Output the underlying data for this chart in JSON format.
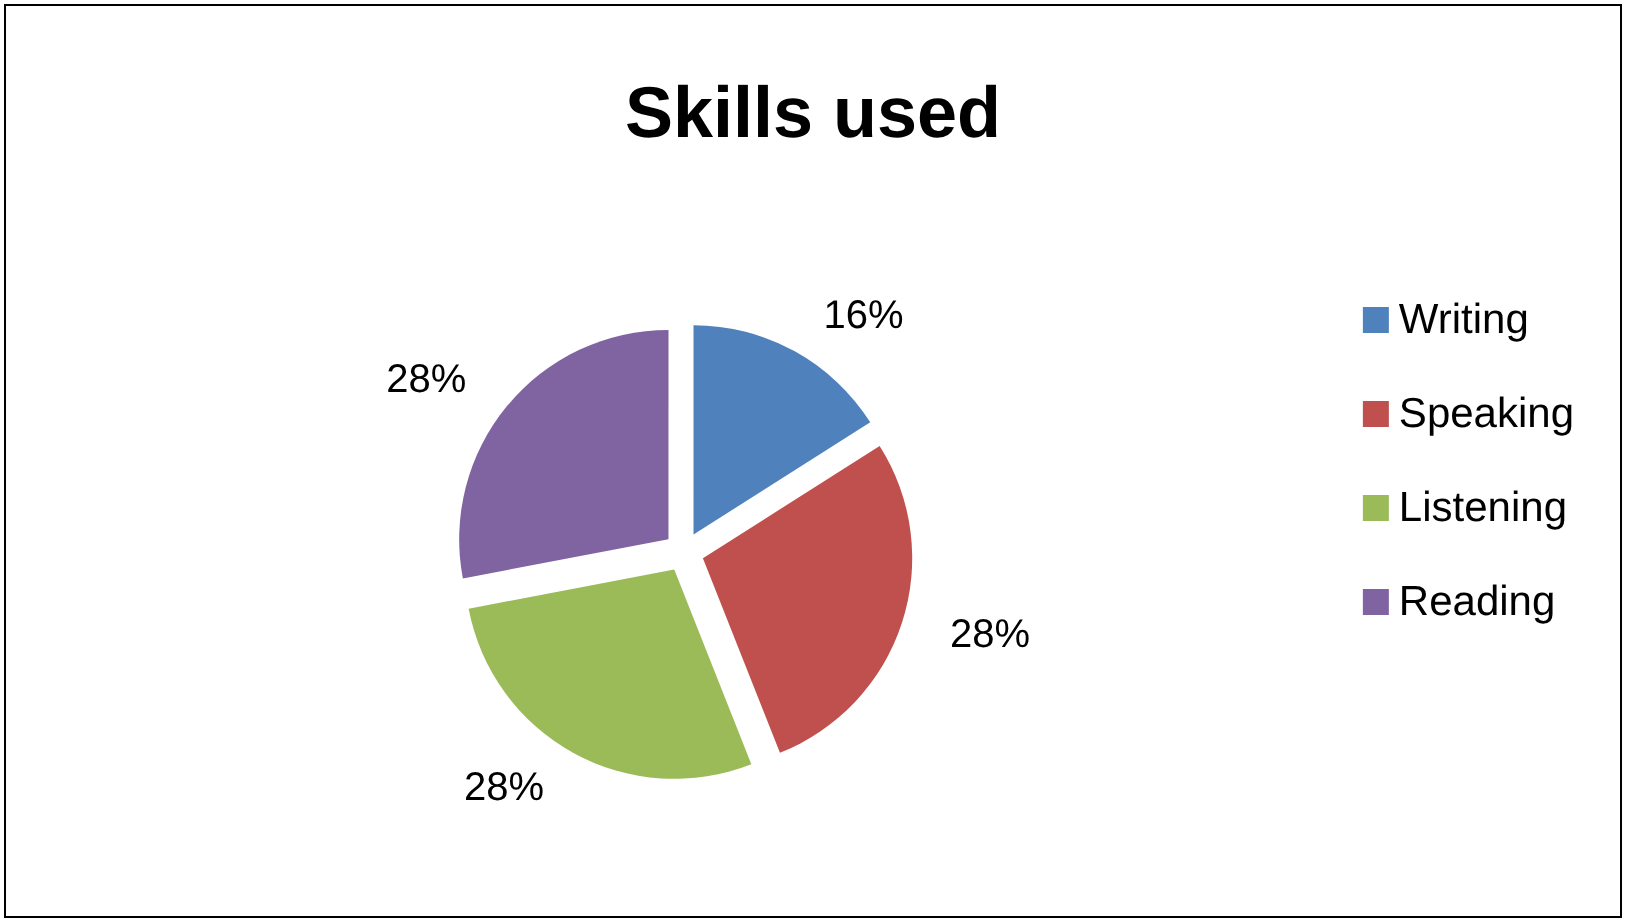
{
  "chart_data": {
    "type": "pie",
    "title": "Skills used",
    "categories": [
      "Writing",
      "Speaking",
      "Listening",
      "Reading"
    ],
    "values": [
      16,
      28,
      28,
      28
    ],
    "colors": [
      "#4f81bd",
      "#c0504d",
      "#9bbb59",
      "#8064a2"
    ],
    "value_labels": [
      "16%",
      "28%",
      "28%",
      "28%"
    ],
    "legend": "right"
  }
}
